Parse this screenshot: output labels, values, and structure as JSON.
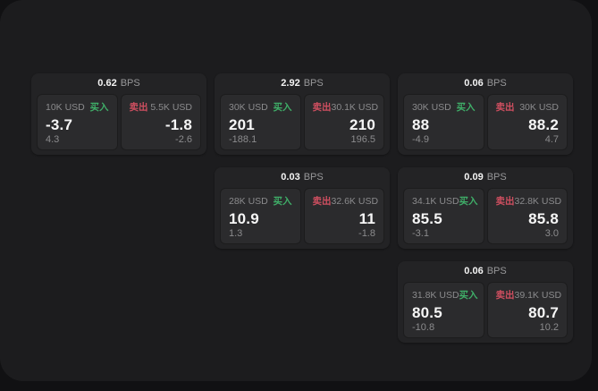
{
  "theme": {
    "outer_bg": "#111113",
    "panel_bg": "#1c1c1e",
    "card_bg": "#232325",
    "tile_bg": "#2b2b2d",
    "text_primary": "#f4f4f4",
    "text_muted": "#8b8b8d",
    "buy_color": "#3fae68",
    "sell_color": "#cf4f60"
  },
  "labels": {
    "bps_unit": "BPS",
    "buy": "买入",
    "sell": "卖出"
  },
  "cards": [
    {
      "bps": "0.62",
      "buy": {
        "size": "10K USD",
        "price": "-3.7",
        "delta": "4.3"
      },
      "sell": {
        "size": "5.5K USD",
        "price": "-1.8",
        "delta": "-2.6"
      }
    },
    {
      "bps": "2.92",
      "buy": {
        "size": "30K USD",
        "price": "201",
        "delta": "-188.1"
      },
      "sell": {
        "size": "30.1K USD",
        "price": "210",
        "delta": "196.5"
      }
    },
    {
      "bps": "0.06",
      "buy": {
        "size": "30K USD",
        "price": "88",
        "delta": "-4.9"
      },
      "sell": {
        "size": "30K USD",
        "price": "88.2",
        "delta": "4.7"
      }
    },
    {
      "bps": "0.03",
      "buy": {
        "size": "28K USD",
        "price": "10.9",
        "delta": "1.3"
      },
      "sell": {
        "size": "32.6K USD",
        "price": "11",
        "delta": "-1.8"
      }
    },
    {
      "bps": "0.09",
      "buy": {
        "size": "34.1K USD",
        "price": "85.5",
        "delta": "-3.1"
      },
      "sell": {
        "size": "32.8K USD",
        "price": "85.8",
        "delta": "3.0"
      }
    },
    {
      "bps": "0.06",
      "buy": {
        "size": "31.8K USD",
        "price": "80.5",
        "delta": "-10.8"
      },
      "sell": {
        "size": "39.1K USD",
        "price": "80.7",
        "delta": "10.2"
      }
    }
  ]
}
